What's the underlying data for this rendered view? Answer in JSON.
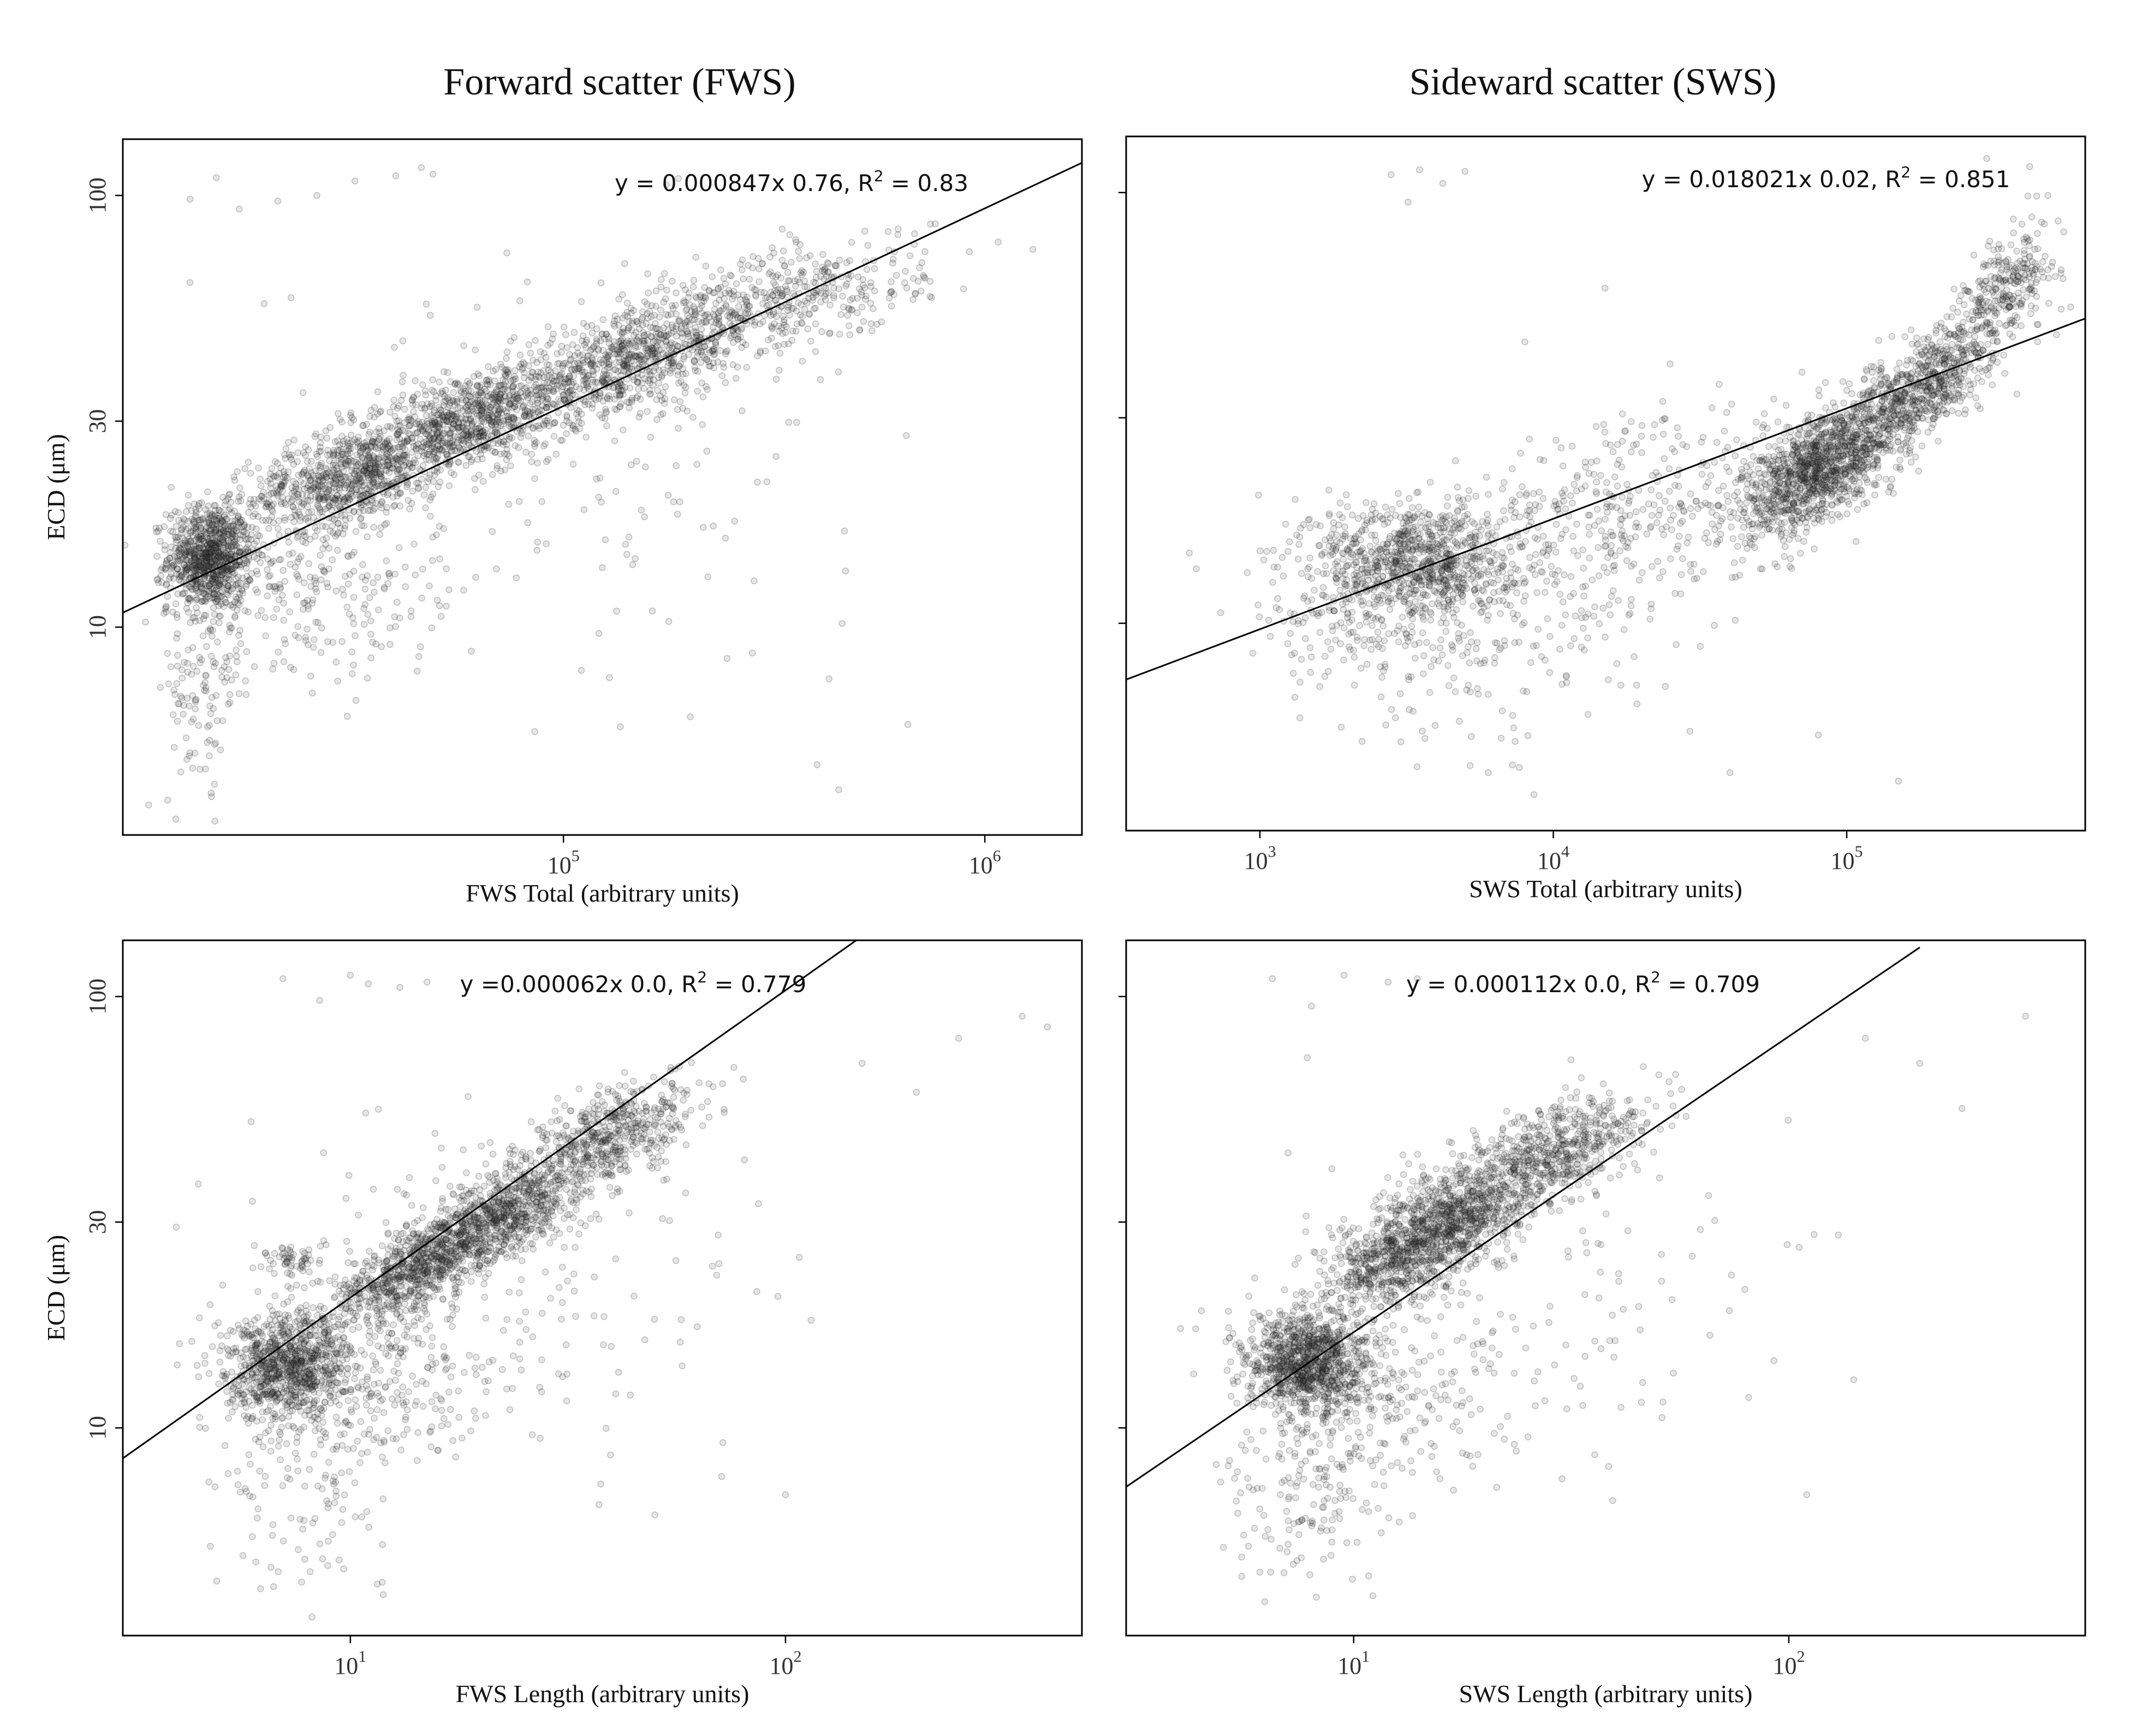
{
  "columns": [
    {
      "title": "Forward scatter (FWS)"
    },
    {
      "title": "Sideward scatter (SWS)"
    }
  ],
  "chart_data": [
    {
      "type": "scatter",
      "column_title": "Forward scatter (FWS)",
      "xlabel": "FWS Total (arbitrary units)",
      "ylabel": "ECD (μm)",
      "x_scale": "log",
      "y_scale": "log",
      "xlim": [
        9000,
        1700000
      ],
      "ylim": [
        3.3,
        135
      ],
      "x_ticks": [
        {
          "base": "10",
          "exp": "5",
          "value": 100000
        },
        {
          "base": "10",
          "exp": "6",
          "value": 1000000
        }
      ],
      "y_ticks": [
        {
          "label": "10",
          "value": 10
        },
        {
          "label": "30",
          "value": 30
        },
        {
          "label": "100",
          "value": 100
        }
      ],
      "annotation": {
        "prefix": "y = 0.000847x 0.76, R",
        "sup": "2",
        "suffix": " = 0.83"
      },
      "fit": {
        "x": [
          9000,
          1700000
        ],
        "y": [
          10.8,
          119
        ]
      },
      "clusters": [
        {
          "x": 14500,
          "y": 14.5,
          "count": 900,
          "sx": 0.05,
          "sy": 0.06,
          "rho": 0
        },
        {
          "x": 30000,
          "y": 22,
          "count": 700,
          "sx": 0.11,
          "sy": 0.06,
          "rho": 0.4
        },
        {
          "x": 60000,
          "y": 30,
          "count": 1000,
          "sx": 0.14,
          "sy": 0.07,
          "rho": 0.6
        },
        {
          "x": 150000,
          "y": 42,
          "count": 800,
          "sx": 0.15,
          "sy": 0.07,
          "rho": 0.6
        },
        {
          "x": 350000,
          "y": 58,
          "count": 400,
          "sx": 0.16,
          "sy": 0.07,
          "rho": 0.5
        },
        {
          "x": 25000,
          "y": 12,
          "count": 250,
          "sx": 0.15,
          "sy": 0.1,
          "rho": 0
        },
        {
          "x": 14000,
          "y": 7,
          "count": 120,
          "sx": 0.05,
          "sy": 0.13,
          "rho": 0
        },
        {
          "x": 100000,
          "y": 25,
          "count": 150,
          "sx": 0.35,
          "sy": 0.25,
          "rho": 0
        }
      ],
      "outliers": [
        [
          13000,
          98
        ],
        [
          15000,
          110
        ],
        [
          17000,
          93
        ],
        [
          21000,
          97
        ],
        [
          26000,
          100
        ],
        [
          32000,
          108
        ],
        [
          40000,
          111
        ],
        [
          46000,
          116
        ],
        [
          49000,
          112
        ],
        [
          600000,
          60
        ],
        [
          1300000,
          75
        ],
        [
          450000,
          4.2
        ],
        [
          200000,
          6.2
        ],
        [
          400000,
          4.8
        ]
      ]
    },
    {
      "type": "scatter",
      "column_title": "Sideward scatter (SWS)",
      "xlabel": "SWS Total (arbitrary units)",
      "ylabel": "",
      "x_scale": "log",
      "y_scale": "log",
      "xlim": [
        350,
        650000
      ],
      "ylim": [
        3.3,
        135
      ],
      "x_ticks": [
        {
          "base": "10",
          "exp": "3",
          "value": 1000
        },
        {
          "base": "10",
          "exp": "4",
          "value": 10000
        },
        {
          "base": "10",
          "exp": "5",
          "value": 100000
        }
      ],
      "y_ticks": [
        {
          "label": "10",
          "value": 10
        },
        {
          "label": "30",
          "value": 30
        },
        {
          "label": "100",
          "value": 100
        }
      ],
      "annotation": {
        "prefix": "y = 0.018021x 0.02, R",
        "sup": "2",
        "suffix": " = 0.851"
      },
      "fit": {
        "x": [
          350,
          650000
        ],
        "y": [
          7.4,
          51
        ]
      },
      "clusters": [
        {
          "x": 3500,
          "y": 14,
          "count": 900,
          "sx": 0.17,
          "sy": 0.07,
          "rho": 0
        },
        {
          "x": 80000,
          "y": 23,
          "count": 1200,
          "sx": 0.13,
          "sy": 0.08,
          "rho": 0.6
        },
        {
          "x": 180000,
          "y": 35,
          "count": 700,
          "sx": 0.12,
          "sy": 0.08,
          "rho": 0.7
        },
        {
          "x": 350000,
          "y": 60,
          "count": 300,
          "sx": 0.09,
          "sy": 0.08,
          "rho": 0.6
        },
        {
          "x": 20000,
          "y": 18,
          "count": 400,
          "sx": 0.3,
          "sy": 0.12,
          "rho": 0.3
        },
        {
          "x": 5000,
          "y": 9,
          "count": 200,
          "sx": 0.3,
          "sy": 0.12,
          "rho": 0
        },
        {
          "x": 2000,
          "y": 11,
          "count": 150,
          "sx": 0.2,
          "sy": 0.09,
          "rho": 0
        }
      ],
      "outliers": [
        [
          2800,
          110
        ],
        [
          3200,
          95
        ],
        [
          3500,
          113
        ],
        [
          4200,
          105
        ],
        [
          5000,
          112
        ],
        [
          8000,
          45
        ],
        [
          15000,
          60
        ],
        [
          25000,
          40
        ],
        [
          6000,
          4.5
        ],
        [
          40000,
          4.5
        ],
        [
          150000,
          4.3
        ],
        [
          80000,
          5.5
        ],
        [
          420000,
          115
        ],
        [
          300000,
          120
        ]
      ]
    },
    {
      "type": "scatter",
      "column_title": "",
      "xlabel": "FWS Length (arbitrary units)",
      "ylabel": "ECD (μm)",
      "x_scale": "log",
      "y_scale": "log",
      "xlim": [
        3,
        480
      ],
      "ylim": [
        3.3,
        135
      ],
      "x_ticks": [
        {
          "base": "10",
          "exp": "1",
          "value": 10
        },
        {
          "base": "10",
          "exp": "2",
          "value": 100
        }
      ],
      "y_ticks": [
        {
          "label": "10",
          "value": 10
        },
        {
          "label": "30",
          "value": 30
        },
        {
          "label": "100",
          "value": 100
        }
      ],
      "annotation": {
        "prefix": "y =0.000062x 0.0, R",
        "sup": "2",
        "suffix": " = 0.779"
      },
      "fit": {
        "x": [
          3,
          150
        ],
        "y": [
          8.5,
          138
        ]
      },
      "clusters": [
        {
          "x": 7.2,
          "y": 13.8,
          "count": 900,
          "sx": 0.07,
          "sy": 0.06,
          "rho": 0
        },
        {
          "x": 14,
          "y": 23,
          "count": 700,
          "sx": 0.1,
          "sy": 0.07,
          "rho": 0.7
        },
        {
          "x": 22,
          "y": 31,
          "count": 900,
          "sx": 0.11,
          "sy": 0.07,
          "rho": 0.7
        },
        {
          "x": 40,
          "y": 48,
          "count": 500,
          "sx": 0.1,
          "sy": 0.06,
          "rho": 0.6
        },
        {
          "x": 7.2,
          "y": 24.5,
          "count": 60,
          "sx": 0.04,
          "sy": 0.02,
          "rho": 0
        },
        {
          "x": 12,
          "y": 13,
          "count": 250,
          "sx": 0.15,
          "sy": 0.1,
          "rho": 0
        },
        {
          "x": 8,
          "y": 7.5,
          "count": 120,
          "sx": 0.1,
          "sy": 0.12,
          "rho": 0
        },
        {
          "x": 25,
          "y": 22,
          "count": 150,
          "sx": 0.3,
          "sy": 0.22,
          "rho": 0
        }
      ],
      "outliers": [
        [
          7,
          110
        ],
        [
          8.5,
          98
        ],
        [
          10,
          112
        ],
        [
          11,
          107
        ],
        [
          13,
          105
        ],
        [
          15,
          108
        ],
        [
          20,
          45
        ],
        [
          4,
          14
        ],
        [
          4.5,
          18
        ],
        [
          100,
          7
        ],
        [
          150,
          70
        ],
        [
          250,
          80
        ],
        [
          350,
          90
        ],
        [
          400,
          85
        ],
        [
          200,
          60
        ],
        [
          70,
          28
        ]
      ]
    },
    {
      "type": "scatter",
      "column_title": "",
      "xlabel": "SWS Length (arbitrary units)",
      "ylabel": "",
      "x_scale": "log",
      "y_scale": "log",
      "xlim": [
        3,
        480
      ],
      "ylim": [
        3.3,
        135
      ],
      "x_ticks": [
        {
          "base": "10",
          "exp": "1",
          "value": 10
        },
        {
          "base": "10",
          "exp": "2",
          "value": 100
        }
      ],
      "y_ticks": [
        {
          "label": "10",
          "value": 10
        },
        {
          "label": "30",
          "value": 30
        },
        {
          "label": "100",
          "value": 100
        }
      ],
      "annotation": {
        "prefix": "y = 0.000112x 0.0, R",
        "sup": "2",
        "suffix": " = 0.709"
      },
      "fit": {
        "x": [
          3,
          200
        ],
        "y": [
          7.3,
          130
        ]
      },
      "clusters": [
        {
          "x": 7.8,
          "y": 14,
          "count": 1000,
          "sx": 0.07,
          "sy": 0.06,
          "rho": 0
        },
        {
          "x": 13,
          "y": 25,
          "count": 700,
          "sx": 0.1,
          "sy": 0.07,
          "rho": 0.6
        },
        {
          "x": 18,
          "y": 32,
          "count": 800,
          "sx": 0.11,
          "sy": 0.07,
          "rho": 0.6
        },
        {
          "x": 30,
          "y": 45,
          "count": 500,
          "sx": 0.1,
          "sy": 0.06,
          "rho": 0.5
        },
        {
          "x": 11,
          "y": 12,
          "count": 250,
          "sx": 0.15,
          "sy": 0.1,
          "rho": 0
        },
        {
          "x": 8,
          "y": 7,
          "count": 150,
          "sx": 0.1,
          "sy": 0.12,
          "rho": 0
        },
        {
          "x": 25,
          "y": 20,
          "count": 150,
          "sx": 0.3,
          "sy": 0.2,
          "rho": 0
        }
      ],
      "outliers": [
        [
          6.5,
          110
        ],
        [
          8,
          95
        ],
        [
          9.5,
          112
        ],
        [
          12,
          108
        ],
        [
          14,
          110
        ],
        [
          4,
          17
        ],
        [
          110,
          7
        ],
        [
          130,
          28
        ],
        [
          150,
          80
        ],
        [
          200,
          70
        ],
        [
          350,
          90
        ],
        [
          250,
          55
        ],
        [
          60,
          25
        ]
      ]
    }
  ]
}
